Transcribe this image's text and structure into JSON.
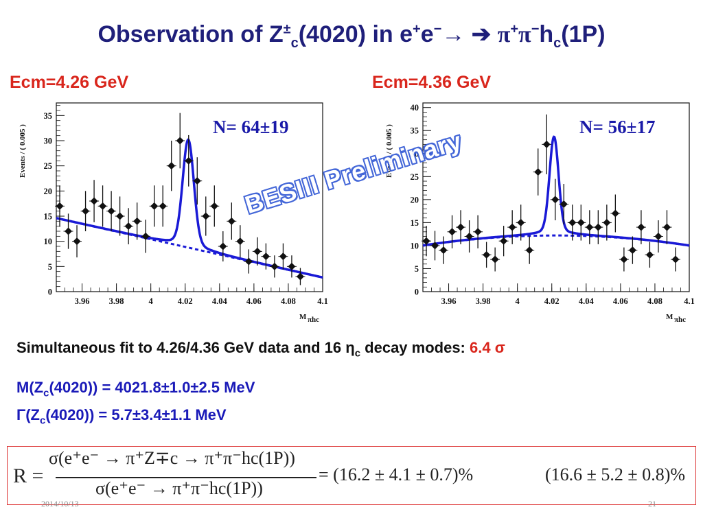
{
  "slide": {
    "title_pre": "Observation of Z",
    "title_pm": "±",
    "title_c": "c",
    "title_mid": "(4020) in e",
    "title_eplus": "+",
    "title_e": "e",
    "title_eminus": "−",
    "title_arrows": "→ ➔",
    "title_pi1": "π",
    "title_pi1sup": "+",
    "title_pi2": "π",
    "title_pi2sup": "−",
    "title_h": "h",
    "title_hsub": "c",
    "title_end": "(1P)",
    "summary_text": "Simultaneous fit to 4.26/4.36 GeV data and 16 η",
    "summary_sub": "c",
    "summary_text2": " decay modes: ",
    "summary_sig": "6.4 σ",
    "mass_pre": "M(Z",
    "mass_sub": "c",
    "mass_post": "(4020)) = 4021.8±1.0±2.5 MeV",
    "width_pre": "Γ(Z",
    "width_sub": "c",
    "width_post": "(4020)) = 5.7±3.4±1.1 MeV",
    "watermark": "BESIII Preliminary",
    "formula_R": "R =",
    "formula_num": "σ(e⁺e⁻ → π⁺Z∓c → π⁺π⁻hc(1P))",
    "formula_den": "σ(e⁺e⁻ → π⁺π⁻hc(1P))",
    "formula_res1": "= (16.2 ± 4.1 ± 0.7)%",
    "formula_res2": "(16.6 ± 5.2 ± 0.8)%",
    "footer_date": "2014/10/13",
    "footer_page": "21"
  },
  "colors": {
    "title": "#1f1f7a",
    "ecm": "#d9261c",
    "fit": "#1a1ad6",
    "points": "#111111",
    "watermark": "#3a5fd6"
  },
  "chart_data": [
    {
      "type": "scatter",
      "ecm_label": "Ecm=4.26 GeV",
      "n_label": "N= 64±19",
      "ylabel": "Events / ( 0.005 )",
      "xlabel_main": "M",
      "xlabel_sub": "πhc",
      "xlim": [
        3.945,
        4.1
      ],
      "ylim": [
        0,
        37.5
      ],
      "xticks": [
        "3.96",
        "3.98",
        "4",
        "4.02",
        "4.04",
        "4.06",
        "4.08",
        "4.1"
      ],
      "xtick_values": [
        3.96,
        3.98,
        4.0,
        4.02,
        4.04,
        4.06,
        4.08,
        4.1
      ],
      "yticks": [
        0,
        5,
        10,
        15,
        20,
        25,
        30,
        35
      ],
      "points": [
        {
          "x": 3.947,
          "y": 17,
          "err": 4.1
        },
        {
          "x": 3.952,
          "y": 12,
          "err": 3.5
        },
        {
          "x": 3.957,
          "y": 10,
          "err": 3.2
        },
        {
          "x": 3.962,
          "y": 16,
          "err": 4.0
        },
        {
          "x": 3.967,
          "y": 18,
          "err": 4.2
        },
        {
          "x": 3.972,
          "y": 17,
          "err": 4.1
        },
        {
          "x": 3.977,
          "y": 16,
          "err": 4.0
        },
        {
          "x": 3.982,
          "y": 15,
          "err": 3.9
        },
        {
          "x": 3.987,
          "y": 13,
          "err": 3.6
        },
        {
          "x": 3.992,
          "y": 14,
          "err": 3.7
        },
        {
          "x": 3.997,
          "y": 11,
          "err": 3.3
        },
        {
          "x": 4.002,
          "y": 17,
          "err": 4.1
        },
        {
          "x": 4.007,
          "y": 17,
          "err": 4.1
        },
        {
          "x": 4.012,
          "y": 25,
          "err": 5.0
        },
        {
          "x": 4.017,
          "y": 30,
          "err": 5.5
        },
        {
          "x": 4.022,
          "y": 26,
          "err": 5.1
        },
        {
          "x": 4.027,
          "y": 22,
          "err": 4.7
        },
        {
          "x": 4.032,
          "y": 15,
          "err": 3.9
        },
        {
          "x": 4.037,
          "y": 17,
          "err": 4.1
        },
        {
          "x": 4.042,
          "y": 9,
          "err": 3.0
        },
        {
          "x": 4.047,
          "y": 14,
          "err": 3.7
        },
        {
          "x": 4.052,
          "y": 10,
          "err": 3.2
        },
        {
          "x": 4.057,
          "y": 6,
          "err": 2.4
        },
        {
          "x": 4.062,
          "y": 8,
          "err": 2.8
        },
        {
          "x": 4.067,
          "y": 7,
          "err": 2.6
        },
        {
          "x": 4.072,
          "y": 5,
          "err": 2.2
        },
        {
          "x": 4.077,
          "y": 7,
          "err": 2.6
        },
        {
          "x": 4.082,
          "y": 5,
          "err": 2.2
        },
        {
          "x": 4.087,
          "y": 3,
          "err": 1.7
        }
      ],
      "background": {
        "type": "linear",
        "x": [
          3.945,
          4.1
        ],
        "y": [
          14.6,
          2.8
        ]
      },
      "signal": {
        "mean": 4.0218,
        "sigma": 0.0032,
        "amplitude": 20.0
      },
      "grid": false
    },
    {
      "type": "scatter",
      "ecm_label": "Ecm=4.36 GeV",
      "n_label": "N= 56±17",
      "ylabel": "Events / ( 0.005 )",
      "xlabel_main": "M",
      "xlabel_sub": "πhc",
      "xlim": [
        3.945,
        4.1
      ],
      "ylim": [
        0,
        41
      ],
      "xticks": [
        "3.96",
        "3.98",
        "4",
        "4.02",
        "4.04",
        "4.06",
        "4.08",
        "4.1"
      ],
      "xtick_values": [
        3.96,
        3.98,
        4.0,
        4.02,
        4.04,
        4.06,
        4.08,
        4.1
      ],
      "yticks": [
        0,
        5,
        10,
        15,
        20,
        25,
        30,
        35,
        40
      ],
      "points": [
        {
          "x": 3.947,
          "y": 11,
          "err": 3.3
        },
        {
          "x": 3.952,
          "y": 10,
          "err": 3.2
        },
        {
          "x": 3.957,
          "y": 9,
          "err": 3.0
        },
        {
          "x": 3.962,
          "y": 13,
          "err": 3.6
        },
        {
          "x": 3.967,
          "y": 14,
          "err": 3.7
        },
        {
          "x": 3.972,
          "y": 12,
          "err": 3.5
        },
        {
          "x": 3.977,
          "y": 13,
          "err": 3.6
        },
        {
          "x": 3.982,
          "y": 8,
          "err": 2.8
        },
        {
          "x": 3.987,
          "y": 7,
          "err": 2.6
        },
        {
          "x": 3.992,
          "y": 11,
          "err": 3.3
        },
        {
          "x": 3.997,
          "y": 14,
          "err": 3.7
        },
        {
          "x": 4.002,
          "y": 15,
          "err": 3.9
        },
        {
          "x": 4.007,
          "y": 9,
          "err": 3.0
        },
        {
          "x": 4.012,
          "y": 26,
          "err": 5.1
        },
        {
          "x": 4.017,
          "y": 32,
          "err": 6.5
        },
        {
          "x": 4.022,
          "y": 20,
          "err": 4.5
        },
        {
          "x": 4.027,
          "y": 19,
          "err": 4.4
        },
        {
          "x": 4.032,
          "y": 15,
          "err": 3.9
        },
        {
          "x": 4.037,
          "y": 15,
          "err": 3.9
        },
        {
          "x": 4.042,
          "y": 14,
          "err": 3.7
        },
        {
          "x": 4.047,
          "y": 14,
          "err": 3.7
        },
        {
          "x": 4.052,
          "y": 15,
          "err": 3.9
        },
        {
          "x": 4.057,
          "y": 17,
          "err": 4.1
        },
        {
          "x": 4.062,
          "y": 7,
          "err": 2.6
        },
        {
          "x": 4.067,
          "y": 9,
          "err": 3.0
        },
        {
          "x": 4.072,
          "y": 14,
          "err": 3.7
        },
        {
          "x": 4.077,
          "y": 8,
          "err": 2.8
        },
        {
          "x": 4.082,
          "y": 12,
          "err": 3.5
        },
        {
          "x": 4.087,
          "y": 14,
          "err": 3.7
        },
        {
          "x": 4.092,
          "y": 7,
          "err": 2.6
        }
      ],
      "background": {
        "type": "quadratic",
        "x": [
          3.945,
          4.02,
          4.1
        ],
        "y": [
          10.0,
          12.2,
          10.0
        ]
      },
      "signal": {
        "mean": 4.0213,
        "sigma": 0.0026,
        "amplitude": 20.0
      },
      "signal_bg_tilt": true,
      "grid": false
    }
  ]
}
